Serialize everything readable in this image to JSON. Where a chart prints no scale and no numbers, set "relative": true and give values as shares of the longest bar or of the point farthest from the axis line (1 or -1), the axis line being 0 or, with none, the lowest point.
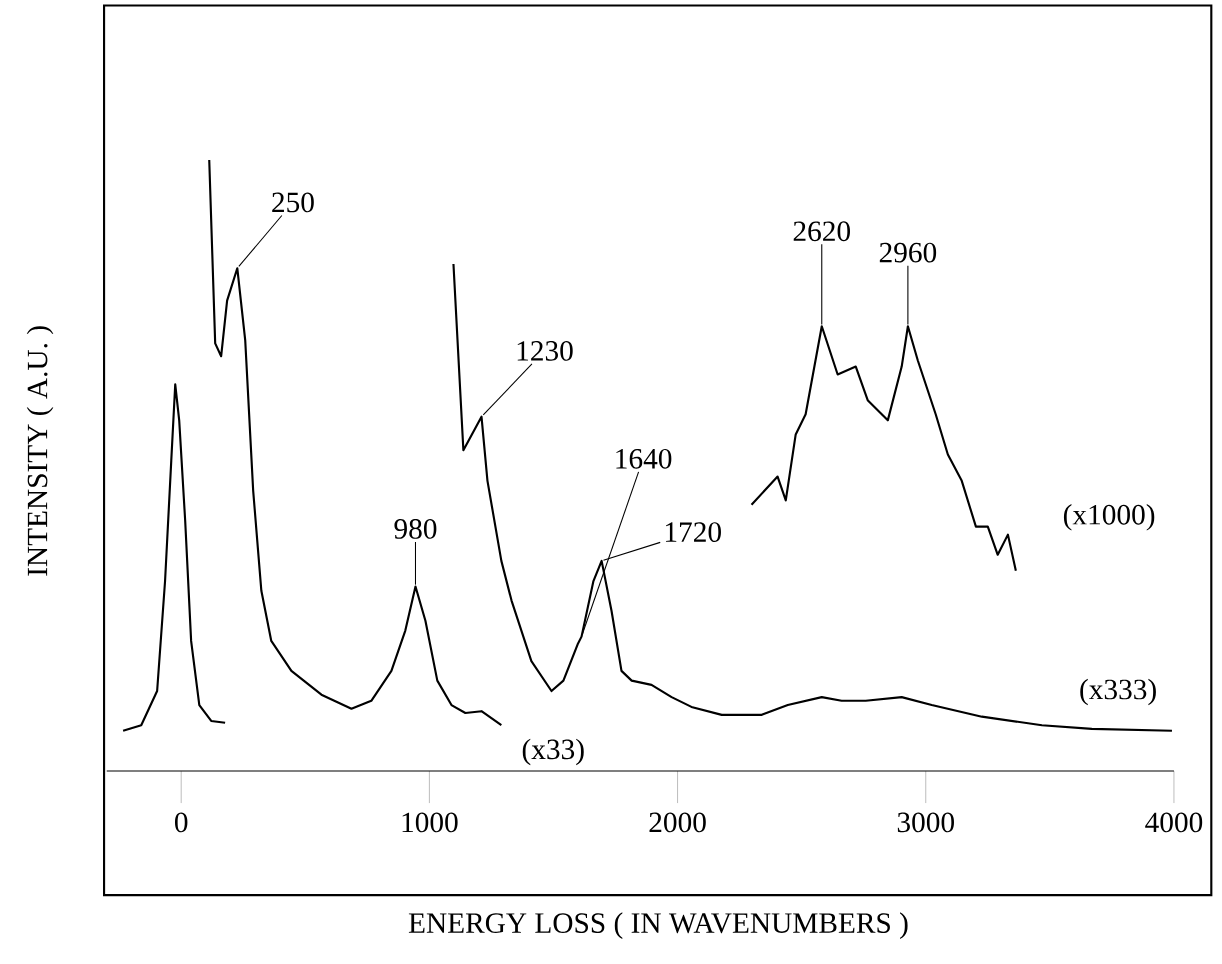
{
  "chart_data": {
    "type": "line",
    "relative": true,
    "xlabel": "ENERGY LOSS ( IN WAVENUMBERS )",
    "ylabel": "INTENSITY ( A.U. )",
    "xlim": [
      -300,
      4000
    ],
    "xticks": [
      0,
      1000,
      2000,
      3000,
      4000
    ],
    "grid": false,
    "legend": false,
    "marker": "none",
    "line_style": "solid",
    "tick_labels": "x",
    "series": [
      {
        "color": "#000000",
        "x": [
          -234,
          -161,
          -97,
          -65,
          -40,
          -24,
          -8,
          16,
          40,
          73,
          121,
          177
        ],
        "values": [
          0.066,
          0.075,
          0.131,
          0.311,
          0.508,
          0.633,
          0.574,
          0.41,
          0.213,
          0.108,
          0.082,
          0.079
        ]
      },
      {
        "name": "(x33)",
        "color": "#000000",
        "x": [
          113,
          137,
          161,
          185,
          226,
          258,
          290,
          323,
          363,
          444,
          565,
          686,
          766,
          847,
          903,
          944,
          984,
          1032,
          1089,
          1145,
          1210,
          1290
        ],
        "values": [
          1.0,
          0.7,
          0.679,
          0.77,
          0.823,
          0.705,
          0.459,
          0.295,
          0.213,
          0.164,
          0.125,
          0.102,
          0.115,
          0.164,
          0.23,
          0.302,
          0.246,
          0.148,
          0.108,
          0.095,
          0.098,
          0.075
        ]
      },
      {
        "name": "(x333)",
        "color": "#000000",
        "x": [
          1097,
          1137,
          1210,
          1234,
          1290,
          1331,
          1411,
          1492,
          1540,
          1597,
          1613,
          1661,
          1694,
          1734,
          1774,
          1815,
          1895,
          1976,
          2056,
          2178,
          2339,
          2444,
          2581,
          2661,
          2758,
          2903,
          3024,
          3226,
          3468,
          3669,
          3992
        ],
        "values": [
          0.83,
          0.525,
          0.58,
          0.475,
          0.344,
          0.279,
          0.18,
          0.131,
          0.148,
          0.207,
          0.22,
          0.311,
          0.344,
          0.262,
          0.164,
          0.148,
          0.141,
          0.121,
          0.105,
          0.092,
          0.092,
          0.108,
          0.121,
          0.115,
          0.115,
          0.121,
          0.108,
          0.089,
          0.075,
          0.069,
          0.066
        ]
      },
      {
        "name": "(x1000)",
        "color": "#000000",
        "x": [
          2298,
          2403,
          2436,
          2476,
          2516,
          2581,
          2645,
          2718,
          2766,
          2847,
          2903,
          2928,
          2968,
          3040,
          3089,
          3145,
          3202,
          3250,
          3290,
          3331,
          3363
        ],
        "values": [
          0.436,
          0.482,
          0.443,
          0.551,
          0.584,
          0.728,
          0.649,
          0.662,
          0.607,
          0.574,
          0.662,
          0.728,
          0.672,
          0.584,
          0.518,
          0.475,
          0.4,
          0.4,
          0.354,
          0.387,
          0.328
        ]
      }
    ],
    "annotations": [
      {
        "text": "250",
        "x": 226,
        "y": 0.823
      },
      {
        "text": "980",
        "x": 944,
        "y": 0.302
      },
      {
        "text": "1230",
        "x": 1210,
        "y": 0.58
      },
      {
        "text": "1640",
        "x": 1613,
        "y": 0.22
      },
      {
        "text": "1720",
        "x": 1694,
        "y": 0.344
      },
      {
        "text": "2620",
        "x": 2581,
        "y": 0.728
      },
      {
        "text": "2960",
        "x": 2928,
        "y": 0.728
      }
    ]
  }
}
